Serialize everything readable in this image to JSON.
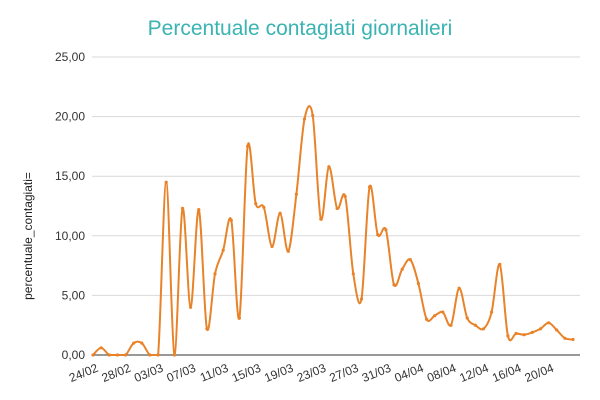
{
  "chart_data": {
    "type": "line",
    "title": "Percentuale contagiati giornalieri",
    "xlabel": "",
    "ylabel": "percentuale_contagiati=",
    "ylim": [
      0,
      25
    ],
    "yticks": [
      "0,00",
      "5,00",
      "10,00",
      "15,00",
      "20,00",
      "25,00"
    ],
    "ytick_values": [
      0,
      5,
      10,
      15,
      20,
      25
    ],
    "xtick_labels": [
      "24/02",
      "28/02",
      "03/03",
      "07/03",
      "11/03",
      "15/03",
      "19/03",
      "23/03",
      "27/03",
      "31/03",
      "04/04",
      "08/04",
      "12/04",
      "16/04",
      "20/04"
    ],
    "xtick_step": 4,
    "grid": true,
    "legend": "none",
    "colors": {
      "series": "#e8832a",
      "title": "#3bb3b3",
      "grid": "#d9d9d9"
    },
    "series": [
      {
        "values": [
          0.0,
          0.6,
          0.0,
          0.0,
          0.0,
          1.0,
          1.0,
          0.0,
          0.0,
          14.5,
          0.0,
          12.3,
          4.0,
          12.2,
          2.2,
          6.8,
          8.8,
          11.3,
          3.1,
          17.5,
          12.7,
          12.4,
          9.1,
          11.9,
          8.7,
          13.5,
          19.8,
          20.1,
          11.4,
          15.8,
          12.3,
          13.3,
          6.8,
          4.7,
          14.1,
          10.1,
          10.5,
          5.9,
          7.2,
          8.0,
          6.0,
          3.0,
          3.3,
          3.6,
          2.5,
          5.6,
          3.1,
          2.5,
          2.2,
          3.6,
          7.6,
          1.6,
          1.8,
          1.7,
          1.9,
          2.2,
          2.7,
          2.1,
          1.4,
          1.3
        ]
      }
    ]
  }
}
